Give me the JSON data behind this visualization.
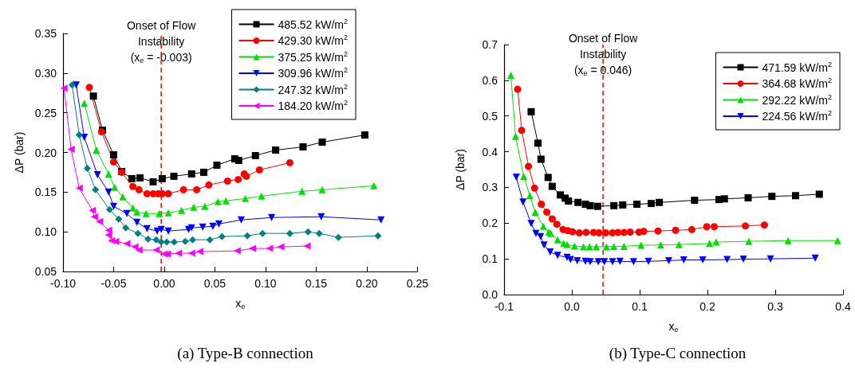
{
  "chart_data": [
    {
      "type": "line",
      "title": "(a) Type-B connection",
      "xlabel": "x$_{e}$",
      "ylabel": "ΔP (bar)",
      "legend": "top right",
      "xlim": [
        -0.1,
        0.25
      ],
      "xticks": [
        {
          "value": -0.1,
          "label": "-0.10"
        },
        {
          "value": -0.05,
          "label": "-0.05"
        },
        {
          "value": 0,
          "label": "0.00"
        },
        {
          "value": 0.05,
          "label": "0.05"
        },
        {
          "value": 0.1,
          "label": "0.10"
        },
        {
          "value": 0.15,
          "label": "0.15"
        },
        {
          "value": 0.2,
          "label": "0.20"
        },
        {
          "value": 0.25,
          "label": "0.25"
        }
      ],
      "ylim": [
        0.05,
        0.35
      ],
      "yticks": [
        {
          "value": 0.05,
          "label": "0.05"
        },
        {
          "value": 0.1,
          "label": "0.10"
        },
        {
          "value": 0.15,
          "label": "0.15"
        },
        {
          "value": 0.2,
          "label": "0.20"
        },
        {
          "value": 0.25,
          "label": "0.25"
        },
        {
          "value": 0.3,
          "label": "0.30"
        },
        {
          "value": 0.35,
          "label": "0.35"
        }
      ],
      "ref_lines": [
        {
          "axis": "x",
          "value": -0.003,
          "label": "Onset of Flow\nInstability\n(x$_{e}$ = -0.003)",
          "color": "#ff0000",
          "line_style": "dashed"
        }
      ],
      "series": [
        {
          "name": "485.52 kW/m$^{2}$",
          "color": "#000000",
          "marker": "square",
          "x": [
            -0.07,
            -0.061,
            -0.05,
            -0.042,
            -0.032,
            -0.024,
            -0.011,
            -0.002,
            0.0095,
            0.027,
            0.039,
            0.052,
            0.0696,
            0.0735,
            0.09,
            0.11,
            0.137,
            0.156,
            0.198
          ],
          "values": [
            0.271,
            0.228,
            0.197,
            0.176,
            0.167,
            0.168,
            0.163,
            0.167,
            0.17,
            0.173,
            0.175,
            0.184,
            0.192,
            0.19,
            0.196,
            0.203,
            0.207,
            0.213,
            0.222
          ]
        },
        {
          "name": "429.30 kW/m$^{2}$",
          "color": "#ff0000",
          "marker": "circle",
          "x": [
            -0.074,
            -0.062,
            -0.05,
            -0.042,
            -0.031,
            -0.025,
            -0.017,
            -0.011,
            -0.006,
            -0.002,
            0.004,
            0.019,
            0.032,
            0.044,
            0.0625,
            0.073,
            0.079,
            0.081,
            0.094,
            0.124
          ],
          "values": [
            0.282,
            0.226,
            0.188,
            0.175,
            0.157,
            0.153,
            0.148,
            0.148,
            0.148,
            0.148,
            0.148,
            0.153,
            0.153,
            0.159,
            0.164,
            0.166,
            0.173,
            0.17,
            0.178,
            0.187
          ]
        },
        {
          "name": "375.25 kW/m$^{2}$",
          "color": "#00e000",
          "marker": "triangle",
          "x": [
            -0.079,
            -0.067,
            -0.055,
            -0.049,
            -0.041,
            -0.031,
            -0.027,
            -0.018,
            -0.005,
            0.004,
            0.017,
            0.029,
            0.04,
            0.053,
            0.061,
            0.08,
            0.096,
            0.136,
            0.156,
            0.207
          ],
          "values": [
            0.262,
            0.203,
            0.173,
            0.156,
            0.144,
            0.13,
            0.125,
            0.123,
            0.123,
            0.124,
            0.127,
            0.131,
            0.132,
            0.138,
            0.139,
            0.142,
            0.145,
            0.151,
            0.153,
            0.158
          ]
        },
        {
          "name": "309.96 kW/m$^{2}$",
          "color": "#0000ff",
          "marker": "triangle-down",
          "x": [
            -0.087,
            -0.079,
            -0.066,
            -0.055,
            -0.05,
            -0.037,
            -0.027,
            -0.017,
            -0.007,
            -0.003,
            0.004,
            0.024,
            0.027,
            0.038,
            0.048,
            0.054,
            0.076,
            0.106,
            0.155,
            0.214
          ],
          "values": [
            0.285,
            0.219,
            0.172,
            0.15,
            0.132,
            0.123,
            0.112,
            0.104,
            0.101,
            0.103,
            0.101,
            0.103,
            0.105,
            0.106,
            0.107,
            0.11,
            0.115,
            0.118,
            0.119,
            0.115
          ]
        },
        {
          "name": "247.32 kW/m$^{2}$",
          "color": "#008080",
          "marker": "diamond",
          "x": [
            -0.091,
            -0.084,
            -0.076,
            -0.068,
            -0.054,
            -0.045,
            -0.038,
            -0.026,
            -0.016,
            -0.008,
            -0.003,
            0.0025,
            0.0098,
            0.0207,
            0.028,
            0.045,
            0.057,
            0.082,
            0.097,
            0.124,
            0.142,
            0.153,
            0.172,
            0.211
          ],
          "values": [
            0.285,
            0.222,
            0.18,
            0.153,
            0.128,
            0.116,
            0.105,
            0.098,
            0.091,
            0.09,
            0.087,
            0.087,
            0.087,
            0.088,
            0.09,
            0.09,
            0.094,
            0.095,
            0.098,
            0.098,
            0.1,
            0.098,
            0.093,
            0.095
          ]
        },
        {
          "name": "184.20 kW/m$^{2}$",
          "color": "#ff00ff",
          "marker": "triangle-left",
          "x": [
            -0.099,
            -0.092,
            -0.084,
            -0.071,
            -0.069,
            -0.064,
            -0.055,
            -0.055,
            -0.052,
            -0.048,
            -0.037,
            -0.029,
            -0.025,
            -0.008,
            0,
            0.003,
            0.014,
            0.027,
            0.035,
            0.072,
            0.087,
            0.104,
            0.115,
            0.141
          ],
          "values": [
            0.281,
            0.204,
            0.155,
            0.127,
            0.119,
            0.113,
            0.102,
            0.096,
            0.089,
            0.088,
            0.085,
            0.081,
            0.077,
            0.077,
            0.072,
            0.072,
            0.073,
            0.073,
            0.075,
            0.076,
            0.079,
            0.079,
            0.081,
            0.082
          ]
        }
      ]
    },
    {
      "type": "line",
      "title": "(b) Type-C connection",
      "xlabel": "x$_{e}$",
      "ylabel": "ΔP (bar)",
      "legend": "top right",
      "xlim": [
        -0.1,
        0.4
      ],
      "xticks": [
        {
          "value": -0.1,
          "label": "-0.1"
        },
        {
          "value": 0,
          "label": "0.0"
        },
        {
          "value": 0.1,
          "label": "0.1"
        },
        {
          "value": 0.2,
          "label": "0.2"
        },
        {
          "value": 0.3,
          "label": "0.3"
        },
        {
          "value": 0.4,
          "label": "0.4"
        }
      ],
      "ylim": [
        0,
        0.7
      ],
      "yticks": [
        {
          "value": 0,
          "label": "0.0"
        },
        {
          "value": 0.1,
          "label": "0.1"
        },
        {
          "value": 0.2,
          "label": "0.2"
        },
        {
          "value": 0.3,
          "label": "0.3"
        },
        {
          "value": 0.4,
          "label": "0.4"
        },
        {
          "value": 0.5,
          "label": "0.5"
        },
        {
          "value": 0.6,
          "label": "0.6"
        },
        {
          "value": 0.7,
          "label": "0.7"
        }
      ],
      "ref_lines": [
        {
          "axis": "x",
          "value": 0.046,
          "label": "Onset of Flow\nInstability\n(x$_{e}$ = 0.046)",
          "color": "#ff0000",
          "line_style": "dashed"
        }
      ],
      "series": [
        {
          "name": "471.59 kW/m$^{2}$",
          "color": "#000000",
          "marker": "square",
          "x": [
            -0.06,
            -0.05,
            -0.0455,
            -0.035,
            -0.029,
            -0.017,
            -0.01,
            -0.005,
            0.009,
            0.02,
            0.027,
            0.038,
            0.062,
            0.075,
            0.096,
            0.117,
            0.129,
            0.181,
            0.217,
            0.225,
            0.26,
            0.295,
            0.33,
            0.365
          ],
          "values": [
            0.512,
            0.424,
            0.379,
            0.328,
            0.303,
            0.279,
            0.27,
            0.262,
            0.258,
            0.253,
            0.249,
            0.247,
            0.249,
            0.251,
            0.253,
            0.255,
            0.258,
            0.264,
            0.266,
            0.268,
            0.271,
            0.275,
            0.277,
            0.281
          ]
        },
        {
          "name": "364.68 kW/m$^{2}$",
          "color": "#ff0000",
          "marker": "circle",
          "x": [
            -0.08,
            -0.074,
            -0.064,
            -0.055,
            -0.045,
            -0.037,
            -0.029,
            -0.022,
            -0.013,
            -0.006,
            0.001,
            0.011,
            0.021,
            0.032,
            0.04,
            0.05,
            0.06,
            0.068,
            0.077,
            0.086,
            0.099,
            0.106,
            0.127,
            0.153,
            0.177,
            0.199,
            0.21,
            0.256,
            0.284
          ],
          "values": [
            0.575,
            0.46,
            0.359,
            0.298,
            0.253,
            0.231,
            0.212,
            0.197,
            0.182,
            0.179,
            0.176,
            0.173,
            0.174,
            0.174,
            0.173,
            0.173,
            0.173,
            0.174,
            0.174,
            0.175,
            0.175,
            0.177,
            0.178,
            0.18,
            0.182,
            0.19,
            0.19,
            0.192,
            0.195
          ]
        },
        {
          "name": "292.22 kW/m$^{2}$",
          "color": "#00e000",
          "marker": "triangle",
          "x": [
            -0.09,
            -0.083,
            -0.071,
            -0.062,
            -0.054,
            -0.042,
            -0.034,
            -0.031,
            -0.021,
            -0.012,
            -0.007,
            0.004,
            0.017,
            0.026,
            0.036,
            0.051,
            0.062,
            0.077,
            0.102,
            0.131,
            0.158,
            0.203,
            0.213,
            0.261,
            0.319,
            0.392
          ],
          "values": [
            0.614,
            0.443,
            0.331,
            0.277,
            0.231,
            0.191,
            0.175,
            0.171,
            0.153,
            0.143,
            0.14,
            0.136,
            0.134,
            0.134,
            0.134,
            0.134,
            0.135,
            0.135,
            0.138,
            0.139,
            0.14,
            0.143,
            0.147,
            0.149,
            0.151,
            0.151
          ]
        },
        {
          "name": "224.56 kW/m$^{2}$",
          "color": "#0000ff",
          "marker": "triangle-down",
          "x": [
            -0.082,
            -0.072,
            -0.06,
            -0.053,
            -0.046,
            -0.041,
            -0.032,
            -0.021,
            -0.007,
            -0.002,
            0.008,
            0.02,
            0.027,
            0.039,
            0.048,
            0.06,
            0.071,
            0.091,
            0.113,
            0.143,
            0.165,
            0.193,
            0.229,
            0.253,
            0.293,
            0.359
          ],
          "values": [
            0.329,
            0.259,
            0.199,
            0.171,
            0.162,
            0.139,
            0.119,
            0.11,
            0.104,
            0.098,
            0.095,
            0.093,
            0.092,
            0.092,
            0.092,
            0.092,
            0.093,
            0.092,
            0.093,
            0.095,
            0.097,
            0.097,
            0.098,
            0.099,
            0.1,
            0.102
          ]
        }
      ]
    }
  ]
}
